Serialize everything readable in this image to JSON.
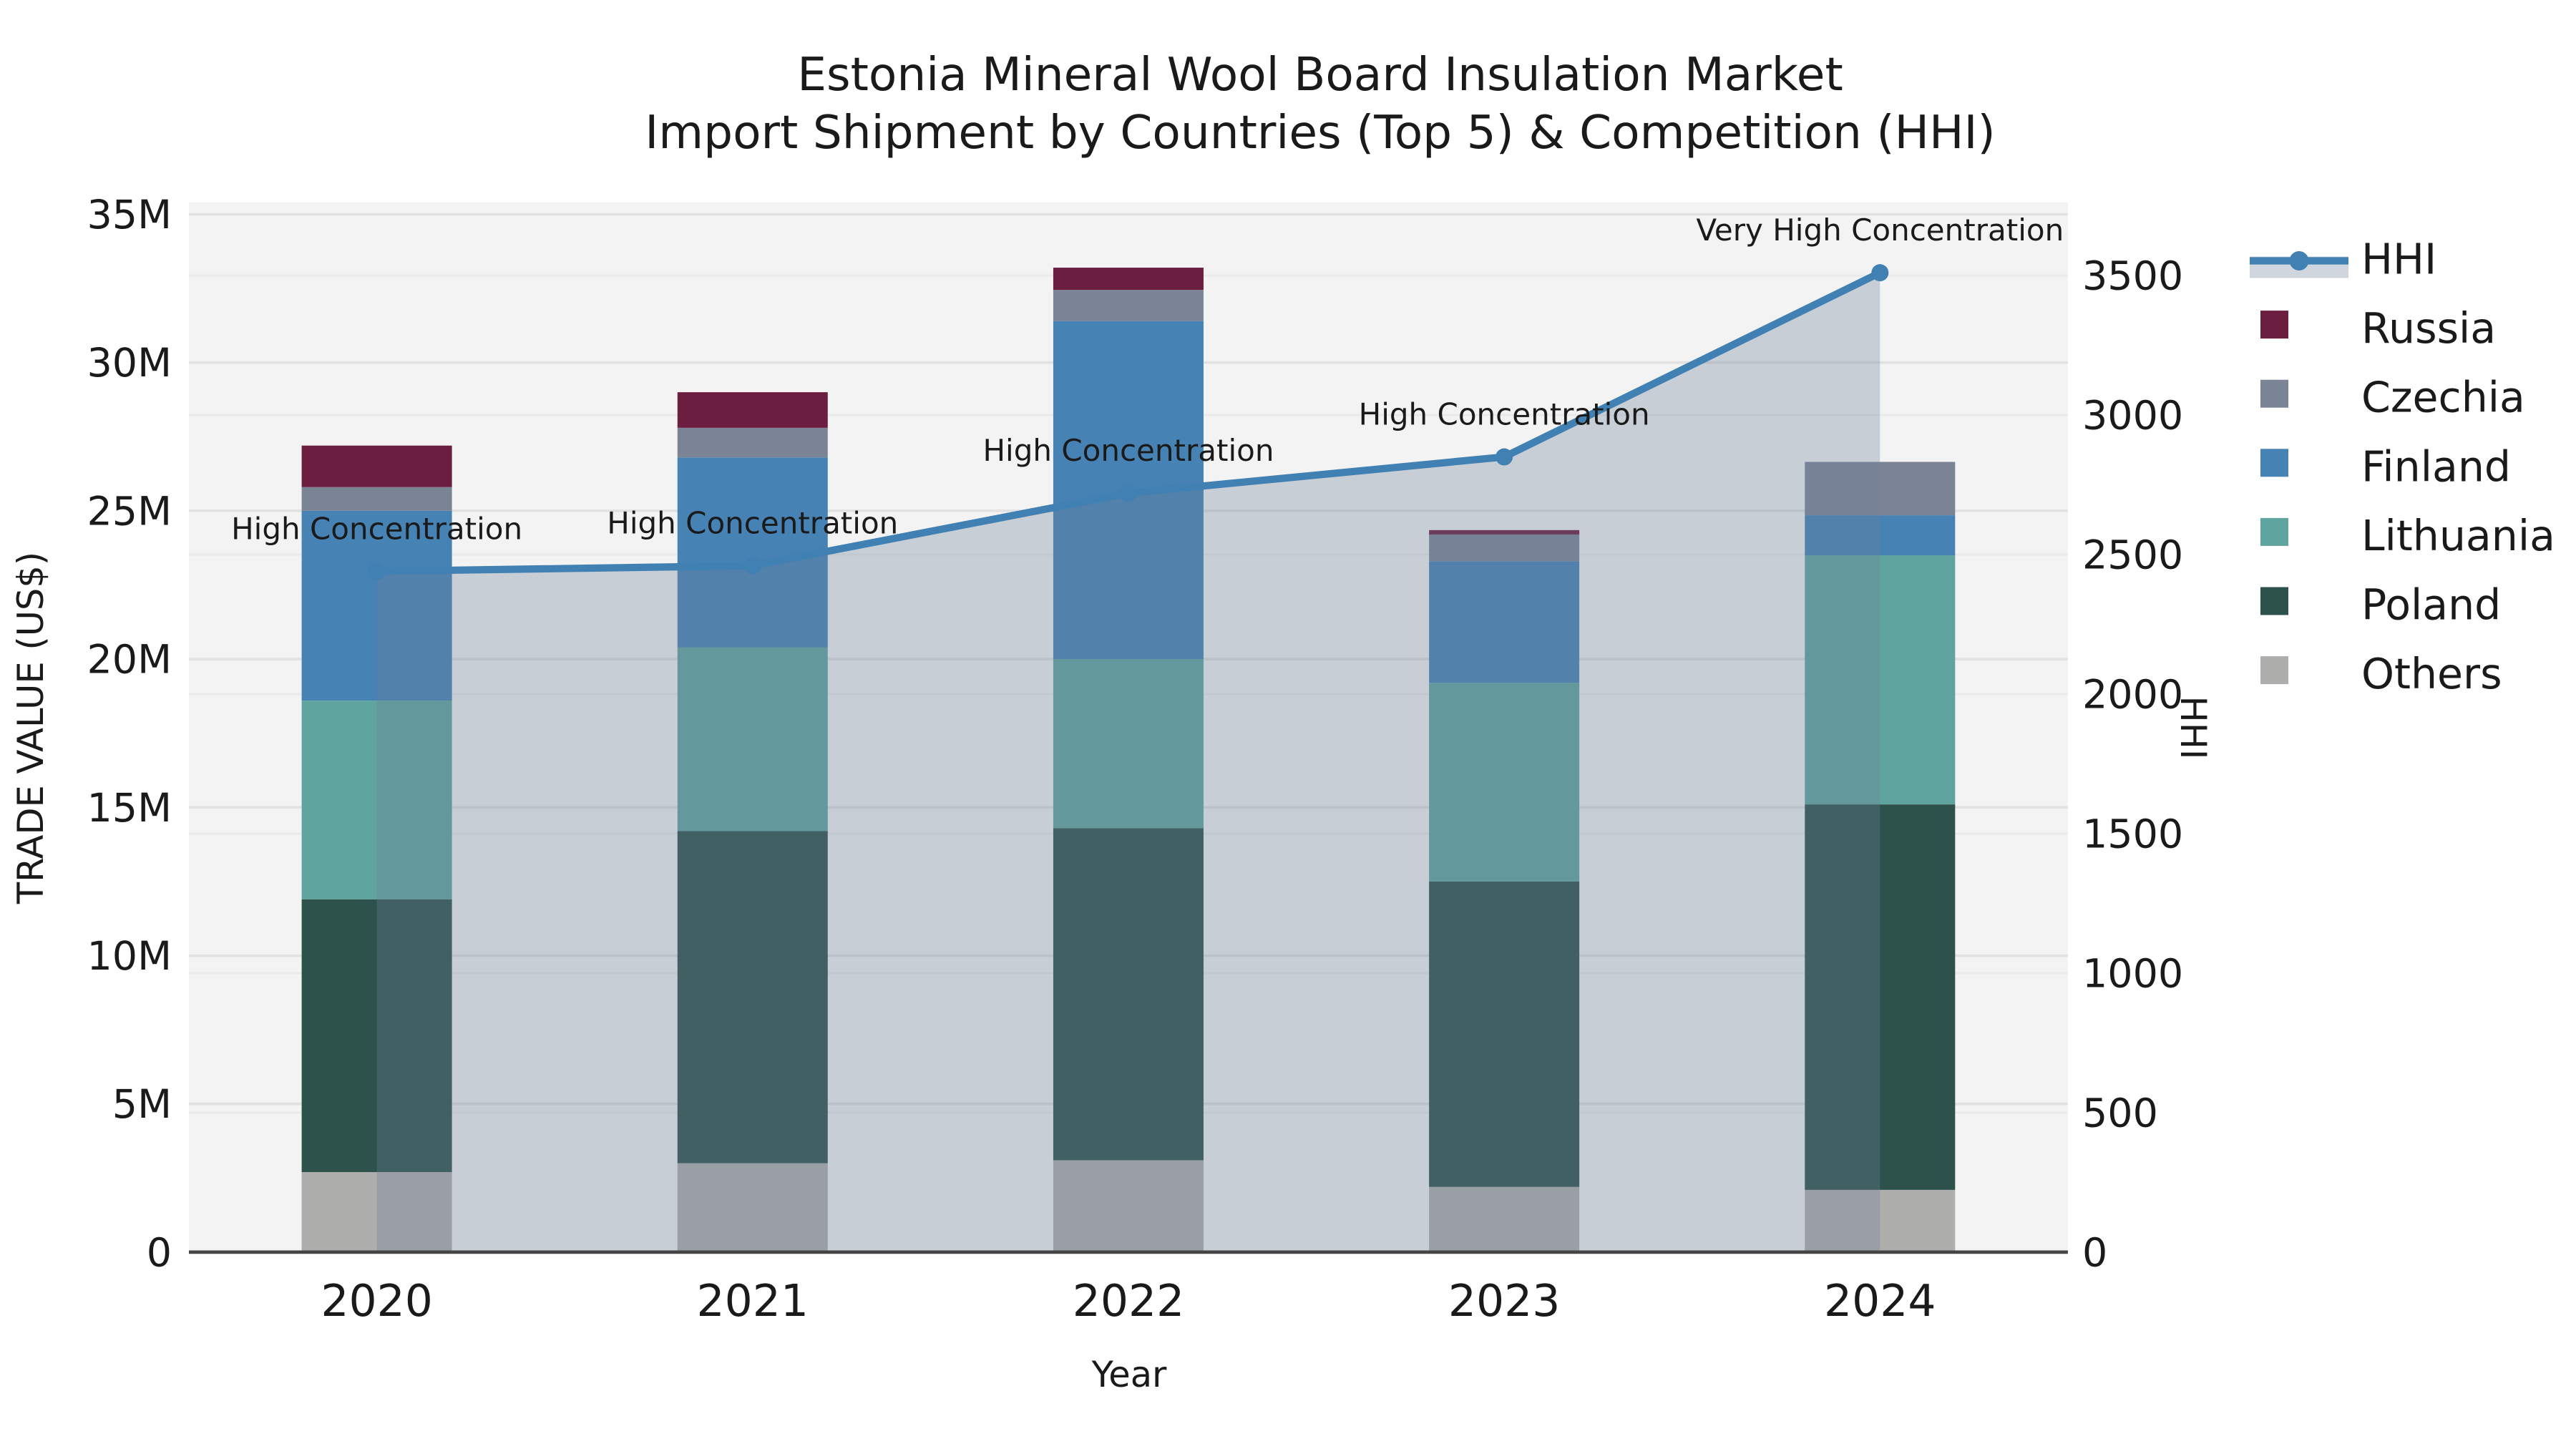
{
  "title": {
    "line1": "Estonia Mineral Wool Board Insulation Market",
    "line2": "Import Shipment by Countries (Top 5) & Competition (HHI)"
  },
  "colors": {
    "plot_bg": "#f3f3f3",
    "grid_left": "#e1e1e1",
    "grid_right": "#eaeaea",
    "baseline": "#444444",
    "text": "#1a1a1a",
    "hhi_line": "#4180b2",
    "hhi_fill": "rgba(109,128,152,0.32)"
  },
  "chart_data": {
    "type": "bar+line",
    "units_left": "US$ millions",
    "categories": [
      "2020",
      "2021",
      "2022",
      "2023",
      "2024"
    ],
    "series": [
      {
        "name": "Others",
        "color": "#aeaeac",
        "values": [
          2.7,
          3.0,
          3.1,
          2.2,
          2.1
        ]
      },
      {
        "name": "Poland",
        "color": "#2d514b",
        "values": [
          9.2,
          11.2,
          11.2,
          10.3,
          13.0
        ]
      },
      {
        "name": "Lithuania",
        "color": "#5fa49f",
        "values": [
          6.7,
          6.2,
          5.7,
          6.7,
          8.4
        ]
      },
      {
        "name": "Finland",
        "color": "#4682b4",
        "values": [
          6.4,
          6.4,
          11.4,
          4.1,
          1.35
        ]
      },
      {
        "name": "Czechia",
        "color": "#7b8494",
        "values": [
          0.8,
          1.0,
          1.05,
          0.9,
          1.8
        ]
      },
      {
        "name": "Russia",
        "color": "#6b1e3f",
        "values": [
          1.4,
          1.2,
          0.75,
          0.15,
          0
        ]
      }
    ],
    "line": {
      "name": "HHI",
      "values": [
        2440,
        2460,
        2720,
        2850,
        3510
      ]
    },
    "annotations": [
      "High Concentration",
      "High Concentration",
      "High Concentration",
      "High Concentration",
      "Very High Concentration"
    ],
    "y_left": {
      "label": "TRADE VALUE (US$)",
      "ticks": [
        0,
        5,
        10,
        15,
        20,
        25,
        30,
        35
      ],
      "tick_labels": [
        "0",
        "5M",
        "10M",
        "15M",
        "20M",
        "25M",
        "30M",
        "35M"
      ],
      "range": [
        0,
        35.4
      ]
    },
    "y_right": {
      "label": "HHI",
      "ticks": [
        0,
        500,
        1000,
        1500,
        2000,
        2500,
        3000,
        3500
      ],
      "tick_labels": [
        "0",
        "500",
        "1000",
        "1500",
        "2000",
        "2500",
        "3000",
        "3500"
      ],
      "range": [
        0,
        3762
      ]
    },
    "x_label": "Year",
    "legend_order": [
      "HHI",
      "Russia",
      "Czechia",
      "Finland",
      "Lithuania",
      "Poland",
      "Others"
    ],
    "grid": true,
    "legend_position": "right"
  }
}
